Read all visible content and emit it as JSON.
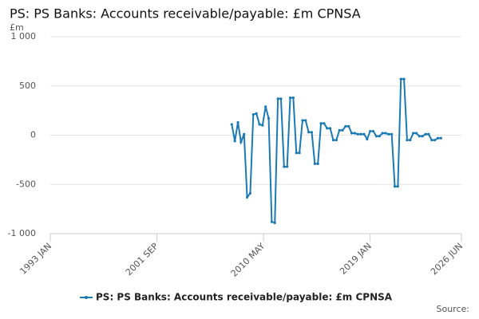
{
  "chart_data": {
    "type": "line",
    "title": "PS: PS Banks: Accounts receivable/payable: £m CPNSA",
    "y_label": "£m",
    "source": "Source:",
    "x": [
      "2007-10",
      "2008-01",
      "2008-04",
      "2008-07",
      "2008-10",
      "2009-01",
      "2009-04",
      "2009-07",
      "2009-10",
      "2010-01",
      "2010-04",
      "2010-07",
      "2010-10",
      "2011-01",
      "2011-04",
      "2011-07",
      "2011-10",
      "2012-01",
      "2012-04",
      "2012-07",
      "2012-10",
      "2013-01",
      "2013-04",
      "2013-07",
      "2013-10",
      "2014-01",
      "2014-04",
      "2014-07",
      "2014-10",
      "2015-01",
      "2015-04",
      "2015-07",
      "2015-10",
      "2016-01",
      "2016-04",
      "2016-07",
      "2016-10",
      "2017-01",
      "2017-04",
      "2017-07",
      "2017-10",
      "2018-01",
      "2018-04",
      "2018-07",
      "2018-10",
      "2019-01",
      "2019-04",
      "2019-07",
      "2019-10",
      "2020-01",
      "2020-04",
      "2020-07",
      "2020-10",
      "2021-01",
      "2021-04",
      "2021-07",
      "2021-10",
      "2022-01",
      "2022-04",
      "2022-07",
      "2022-10",
      "2023-01",
      "2023-04",
      "2023-07",
      "2023-10",
      "2024-01",
      "2024-04",
      "2024-07",
      "2024-10"
    ],
    "series": [
      {
        "name": "PS: PS Banks: Accounts receivable/payable: £m CPNSA",
        "color": "#1a7ab4",
        "values": [
          110,
          -60,
          130,
          -70,
          10,
          -630,
          -590,
          210,
          220,
          110,
          100,
          290,
          170,
          -880,
          -890,
          370,
          370,
          -320,
          -320,
          380,
          380,
          -180,
          -180,
          150,
          150,
          30,
          30,
          -290,
          -290,
          120,
          120,
          70,
          70,
          -50,
          -50,
          50,
          50,
          90,
          90,
          20,
          20,
          10,
          10,
          10,
          -40,
          40,
          40,
          -10,
          -10,
          20,
          20,
          10,
          10,
          -520,
          -520,
          570,
          570,
          -50,
          -50,
          20,
          20,
          -10,
          -10,
          10,
          10,
          -50,
          -50,
          -30,
          -30
        ]
      }
    ],
    "xlim": [
      "1993-01",
      "2026-06"
    ],
    "xticks": [
      {
        "value": "1993-01",
        "label": "1993 JAN"
      },
      {
        "value": "2001-09",
        "label": "2001 SEP"
      },
      {
        "value": "2010-05",
        "label": "2010 MAY"
      },
      {
        "value": "2019-01",
        "label": "2019 JAN"
      },
      {
        "value": "2026-06",
        "label": "2026 JUN"
      }
    ],
    "ylim": [
      -1000,
      1000
    ],
    "yticks": [
      {
        "value": 1000,
        "label": "1 000"
      },
      500,
      0,
      -500,
      {
        "value": -1000,
        "label": "-1 000"
      }
    ],
    "grid": true
  }
}
